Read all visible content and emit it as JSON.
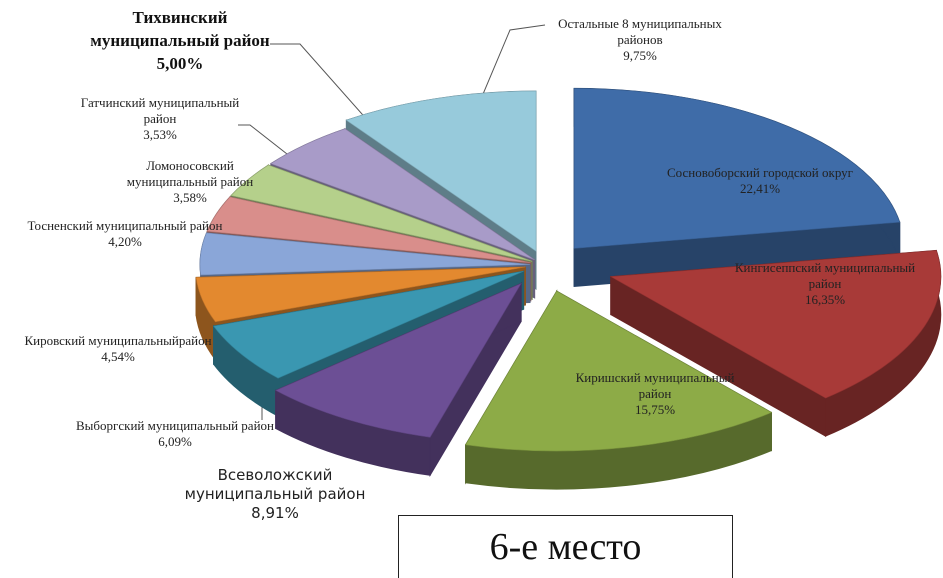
{
  "chart_data": {
    "type": "pie",
    "categories": [
      "Сосновоборский городской округ",
      "Кингисеппский муниципальный район",
      "Киришский муниципальный район",
      "Всеволожский муниципальный район",
      "Выборгский муниципальный район",
      "Кировский муниципальныйрайон",
      "Тосненский муниципальный район",
      "Ломоносовский муниципальный район",
      "Гатчинский муниципальный район",
      "Тихвинский муниципальный район",
      "Остальные 8 муниципальных районов"
    ],
    "values": [
      22.41,
      16.35,
      15.75,
      8.91,
      6.09,
      4.54,
      4.2,
      3.58,
      3.53,
      5.0,
      9.75
    ],
    "value_labels": [
      "22,41%",
      "16,35%",
      "15,75%",
      "8,91%",
      "6,09%",
      "4,54%",
      "4,20%",
      "3,58%",
      "3,53%",
      "5,00%",
      "9,75%"
    ],
    "colors": [
      "#3f6ca8",
      "#a83a38",
      "#8dab47",
      "#6c4f95",
      "#3a97b1",
      "#e3892f",
      "#8aa6d8",
      "#d98e8b",
      "#b5d08b",
      "#a89bc8",
      "#97cadb"
    ],
    "annotation": "6-е место"
  }
}
